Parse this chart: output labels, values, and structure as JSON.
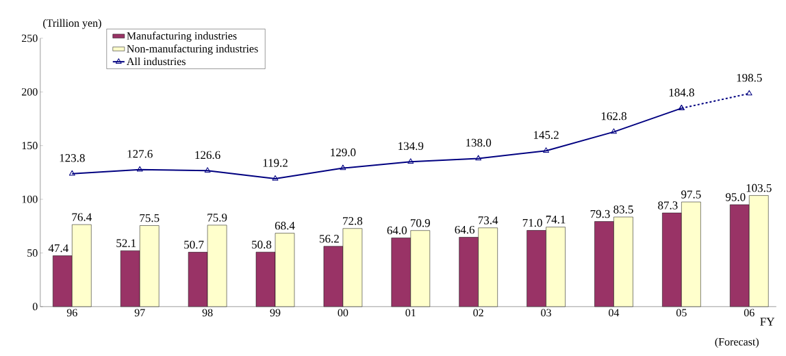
{
  "chart_data": {
    "type": "bar",
    "ylabel": "(Trillion yen)",
    "xlabel": "FY",
    "categories": [
      "96",
      "97",
      "98",
      "99",
      "00",
      "01",
      "02",
      "03",
      "04",
      "05",
      "06"
    ],
    "series": [
      {
        "name": "Manufacturing industries",
        "color": "#993366",
        "values": [
          47.4,
          52.1,
          50.7,
          50.8,
          56.2,
          64.0,
          64.6,
          71.0,
          79.3,
          87.3,
          95.0
        ],
        "value_labels": [
          "47.4",
          "52.1",
          "50.7",
          "50.8",
          "56.2",
          "64.0",
          "64.6",
          "71.0",
          "79.3",
          "87.3",
          "95.0"
        ]
      },
      {
        "name": "Non-manufacturing industries",
        "color": "#ffffcc",
        "values": [
          76.4,
          75.5,
          75.9,
          68.4,
          72.8,
          70.9,
          73.4,
          74.1,
          83.5,
          97.5,
          103.5
        ]
      },
      {
        "name": "All industries",
        "type": "line",
        "color": "#000080",
        "marker": "triangle",
        "line_style": "solid",
        "values": [
          123.8,
          127.6,
          126.6,
          119.2,
          129.0,
          134.9,
          138.0,
          145.2,
          162.8,
          184.8,
          null
        ],
        "value_labels": [
          "123.8",
          "127.6",
          "126.6",
          "119.2",
          "129.0",
          "134.9",
          "138.0",
          "145.2",
          "162.8",
          "184.8",
          null
        ]
      },
      {
        "type": "line",
        "color": "#000080",
        "marker": "triangle",
        "line_style": "dashed",
        "values": [
          null,
          null,
          null,
          null,
          null,
          null,
          null,
          null,
          null,
          184.8,
          198.5
        ],
        "value_labels": [
          null,
          null,
          null,
          null,
          null,
          null,
          null,
          null,
          null,
          null,
          "198.5"
        ]
      }
    ],
    "ylim": [
      0,
      250
    ],
    "yticks": [
      0,
      50,
      100,
      150,
      200,
      250
    ],
    "data_labels": true,
    "legend": "top left",
    "grid": false,
    "annotations": [
      "(Forecast)"
    ]
  }
}
